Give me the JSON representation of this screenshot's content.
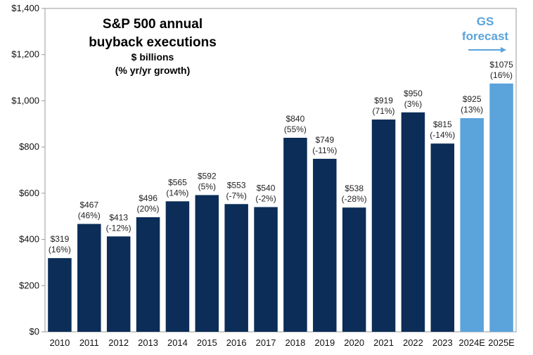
{
  "chart_data": {
    "type": "bar",
    "title_lines": [
      "S&P 500 annual",
      "buyback executions"
    ],
    "subtitle_lines": [
      "$ billions",
      "(% yr/yr growth)"
    ],
    "categories": [
      "2010",
      "2011",
      "2012",
      "2013",
      "2014",
      "2015",
      "2016",
      "2017",
      "2018",
      "2019",
      "2020",
      "2021",
      "2022",
      "2023",
      "2024E",
      "2025E"
    ],
    "values": [
      319,
      467,
      413,
      496,
      565,
      592,
      553,
      540,
      840,
      749,
      538,
      919,
      950,
      815,
      925,
      1075
    ],
    "value_labels": [
      "$319",
      "$467",
      "$413",
      "$496",
      "$565",
      "$592",
      "$553",
      "$540",
      "$840",
      "$749",
      "$538",
      "$919",
      "$950",
      "$815",
      "$925",
      "$1075"
    ],
    "growth_labels": [
      "(16%)",
      "(46%)",
      "(-12%)",
      "(20%)",
      "(14%)",
      "(5%)",
      "(-7%)",
      "(-2%)",
      "(55%)",
      "(-11%)",
      "(-28%)",
      "(71%)",
      "(3%)",
      "(-14%)",
      "(13%)",
      "(16%)"
    ],
    "forecast": [
      false,
      false,
      false,
      false,
      false,
      false,
      false,
      false,
      false,
      false,
      false,
      false,
      false,
      false,
      true,
      true
    ],
    "ylim": [
      0,
      1400
    ],
    "y_ticks": [
      0,
      200,
      400,
      600,
      800,
      1000,
      1200,
      1400
    ],
    "y_tick_labels": [
      "$0",
      "$200",
      "$400",
      "$600",
      "$800",
      "$1,000",
      "$1,200",
      "$1,400"
    ],
    "annotation_lines": [
      "GS",
      "forecast"
    ],
    "grid": false,
    "colors": {
      "actual": "#0b2d57",
      "forecast": "#5aa3db",
      "forecast_text": "#5aa3db",
      "axis": "#9a9a9a"
    }
  }
}
